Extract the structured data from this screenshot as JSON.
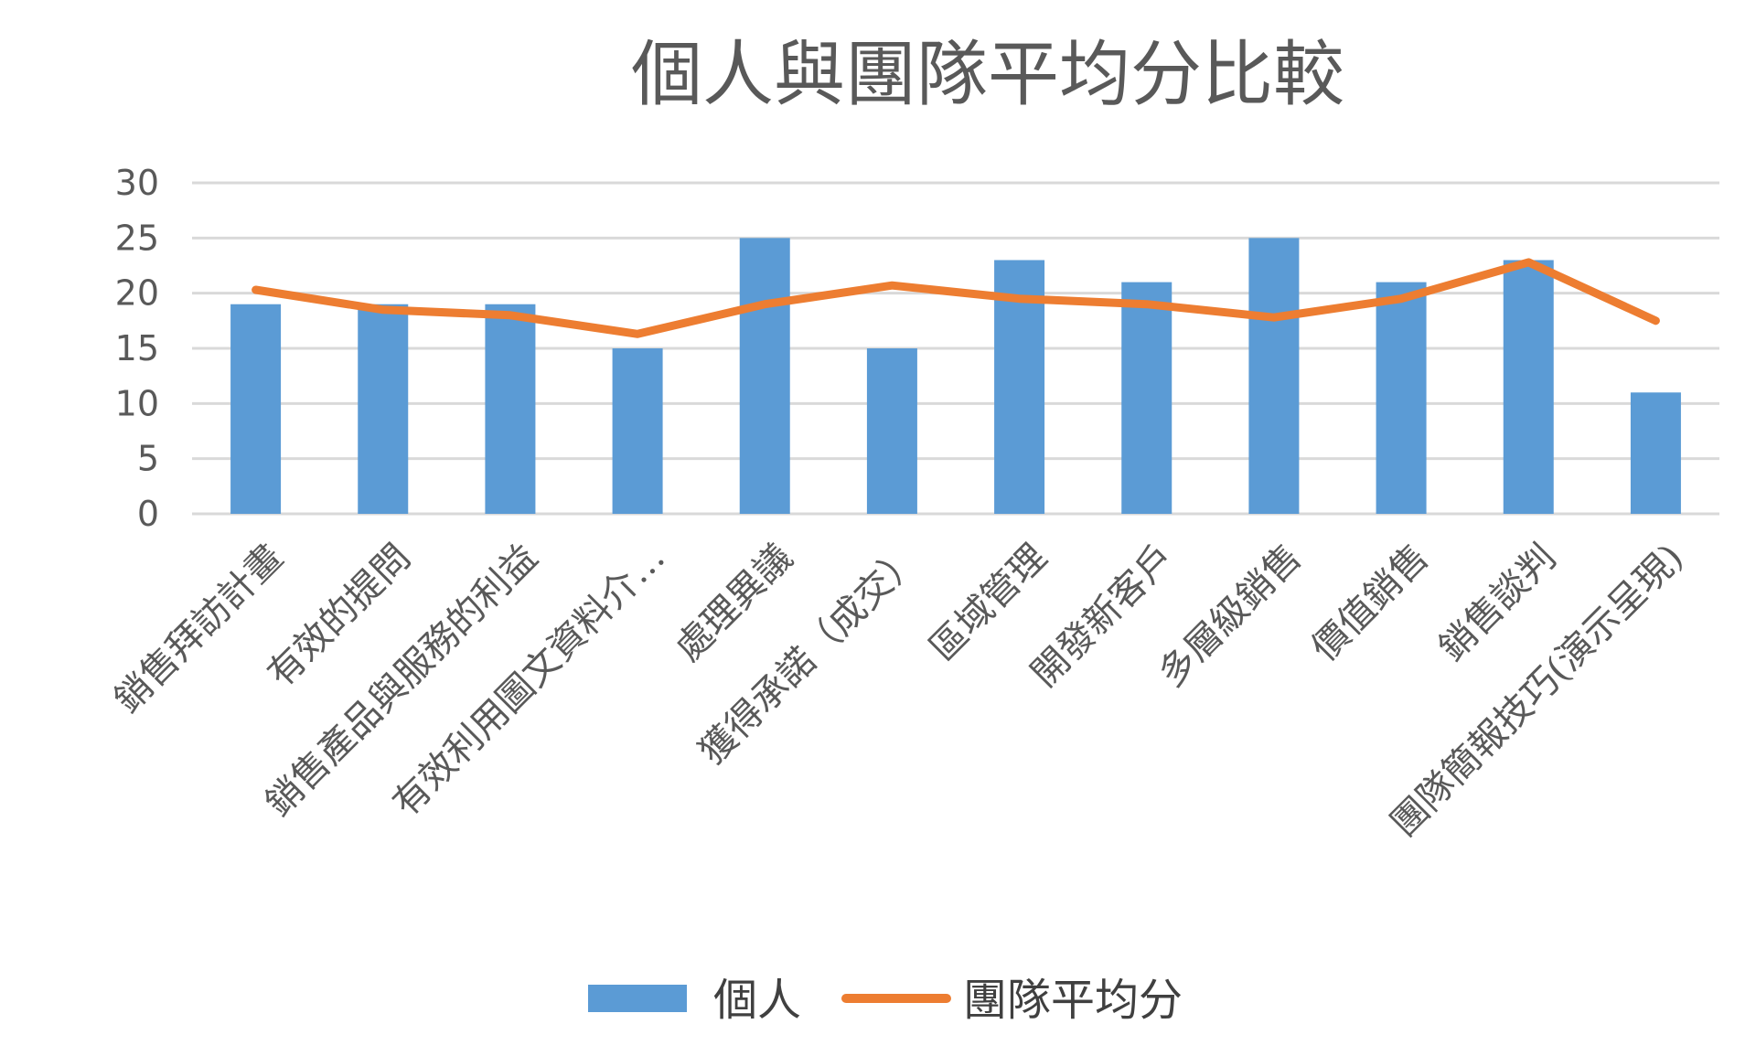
{
  "chart_data": {
    "type": "bar",
    "title": "個人與團隊平均分比較",
    "xlabel": "",
    "ylabel": "",
    "ylim": [
      0,
      30
    ],
    "yticks": [
      0,
      5,
      10,
      15,
      20,
      25,
      30
    ],
    "grid": true,
    "legend_position": "bottom",
    "categories": [
      "銷售拜訪計畫",
      "有效的提問",
      "銷售產品與服務的利益",
      "有效利用圖文資料介…",
      "處理異議",
      "獲得承諾（成交）",
      "區域管理",
      "開發新客戶",
      "多層級銷售",
      "價值銷售",
      "銷售談判",
      "團隊簡報技巧(演示呈現)"
    ],
    "series": [
      {
        "name": "個人",
        "type": "bar",
        "color": "#5b9bd5",
        "values": [
          19,
          19,
          19,
          15,
          25,
          15,
          23,
          21,
          25,
          21,
          23,
          11
        ]
      },
      {
        "name": "團隊平均分",
        "type": "line",
        "color": "#ed7d31",
        "values": [
          20.3,
          18.5,
          18.0,
          16.3,
          19.0,
          20.7,
          19.5,
          19.0,
          17.8,
          19.5,
          22.8,
          17.5
        ]
      }
    ]
  }
}
